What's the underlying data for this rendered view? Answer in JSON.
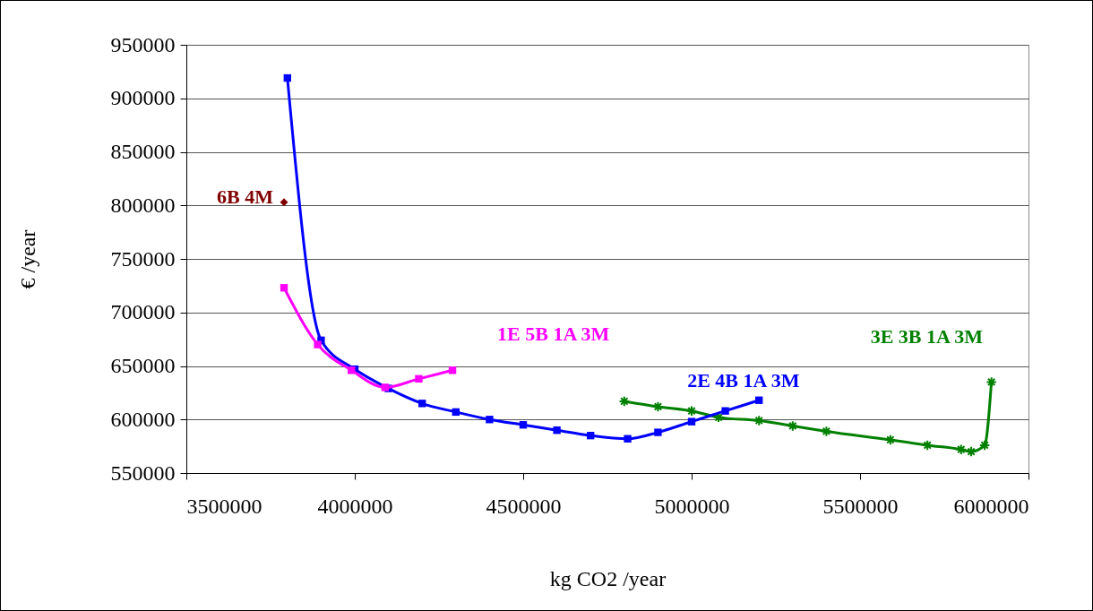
{
  "chart_data": {
    "type": "line",
    "xlabel": "kg CO2 /year",
    "ylabel": "€ /year",
    "xlim": [
      3500000,
      6000000
    ],
    "xticks": [
      3500000,
      4000000,
      4500000,
      5000000,
      5500000,
      6000000
    ],
    "ylim": [
      550000,
      950000
    ],
    "yticks": [
      550000,
      600000,
      650000,
      700000,
      750000,
      800000,
      850000,
      900000,
      950000
    ],
    "grid": "y",
    "series": [
      {
        "name": "6B 4M",
        "type": "scatter",
        "marker": "diamond",
        "color": "#800000",
        "x": [
          3790000
        ],
        "values": [
          803000
        ]
      },
      {
        "name": "1E 5B 1A 3M",
        "marker": "square",
        "color": "#ff00ff",
        "x": [
          3790000,
          3890000,
          3990000,
          4090000,
          4190000,
          4290000
        ],
        "values": [
          723000,
          670000,
          646000,
          630000,
          638000,
          646000
        ]
      },
      {
        "name": "2E 4B 1A 3M",
        "marker": "square",
        "color": "#0000ff",
        "x": [
          3800000,
          3900000,
          4000000,
          4100000,
          4200000,
          4300000,
          4400000,
          4500000,
          4600000,
          4700000,
          4810000,
          4900000,
          5000000,
          5100000,
          5200000
        ],
        "values": [
          919000,
          674000,
          647000,
          629000,
          615000,
          607000,
          600000,
          595000,
          590000,
          585000,
          582000,
          588000,
          598000,
          608000,
          618000
        ]
      },
      {
        "name": "3E 3B 1A 3M",
        "marker": "cross",
        "color": "#008000",
        "x": [
          4800000,
          4900000,
          5000000,
          5080000,
          5200000,
          5300000,
          5400000,
          5590000,
          5700000,
          5800000,
          5830000,
          5870000,
          5890000
        ],
        "values": [
          617000,
          612000,
          608000,
          602000,
          599000,
          594000,
          589000,
          581000,
          576000,
          572000,
          570000,
          576000,
          635000
        ]
      }
    ]
  }
}
